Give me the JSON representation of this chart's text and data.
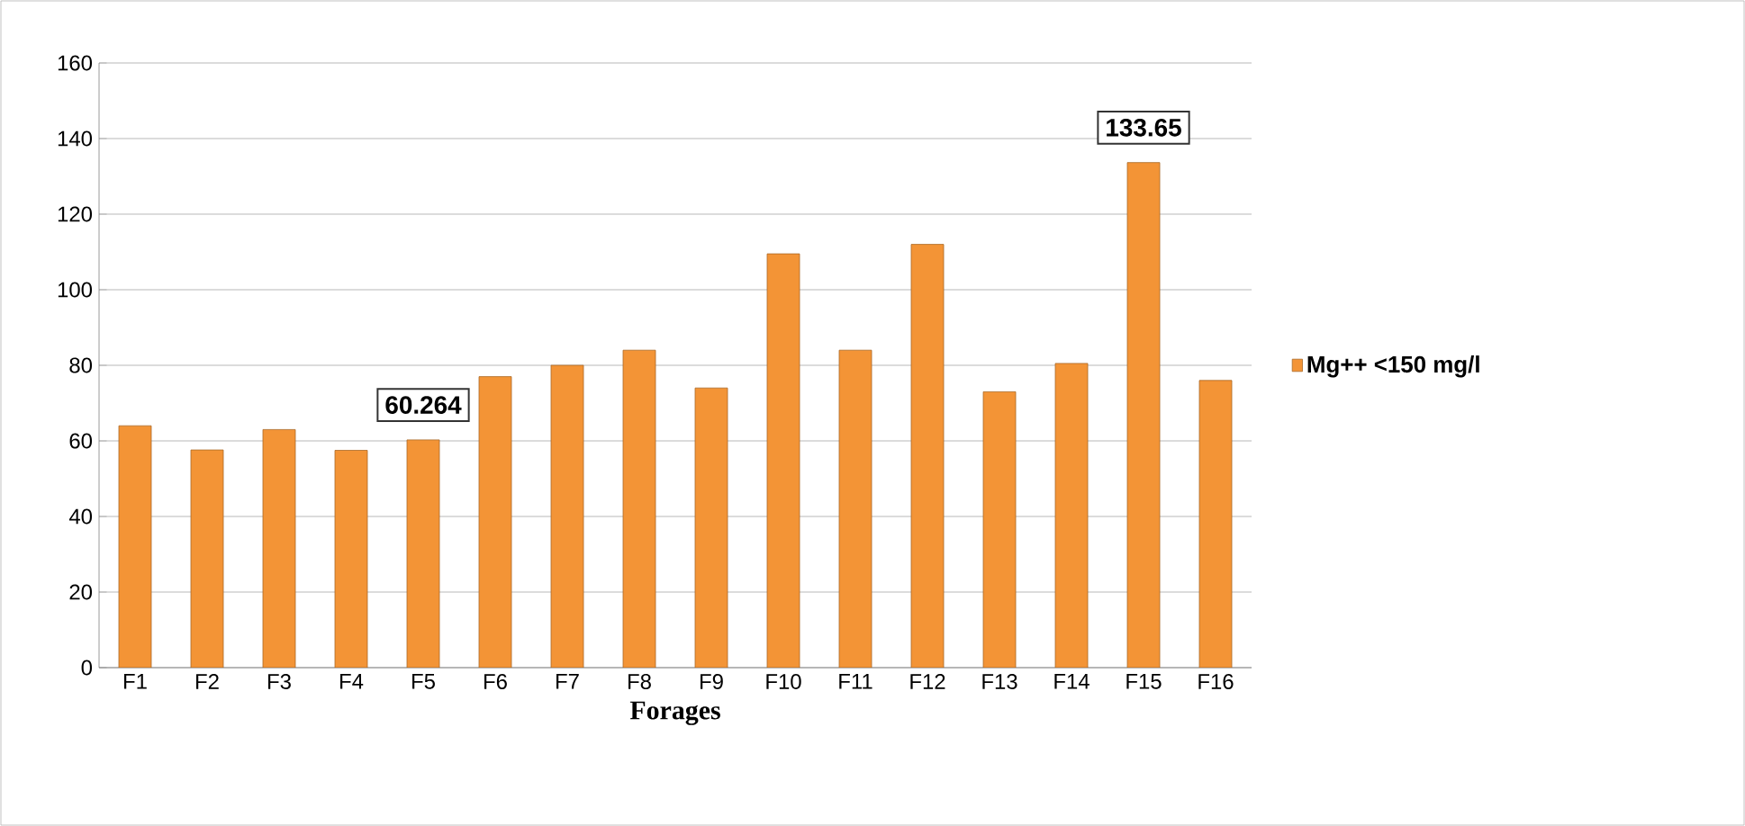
{
  "chart_data": {
    "type": "bar",
    "xlabel": "Forages",
    "categories": [
      "F1",
      "F2",
      "F3",
      "F4",
      "F5",
      "F6",
      "F7",
      "F8",
      "F9",
      "F10",
      "F11",
      "F12",
      "F13",
      "F14",
      "F15",
      "F16"
    ],
    "series": [
      {
        "name": "Mg++ <150 mg/l",
        "color": "#f39436",
        "values": [
          64,
          57.6,
          63,
          57.5,
          60.264,
          77,
          80,
          84,
          74,
          109.5,
          84,
          112,
          73,
          80.5,
          133.65,
          76
        ],
        "value_labels": [
          null,
          null,
          null,
          null,
          "60.264",
          null,
          null,
          null,
          null,
          null,
          null,
          null,
          null,
          null,
          "133.65",
          null
        ]
      }
    ],
    "ylim": [
      0,
      160
    ],
    "yticks": [
      0,
      20,
      40,
      60,
      80,
      100,
      120,
      140,
      160
    ],
    "grid": "y",
    "legend": "right"
  }
}
